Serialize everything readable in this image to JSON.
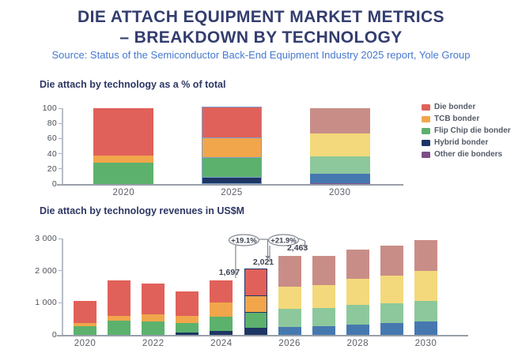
{
  "header": {
    "title_line1": "DIE ATTACH EQUIPMENT MARKET METRICS",
    "title_line2": "– BREAKDOWN BY TECHNOLOGY",
    "source": "Source: Status of the Semiconductor Back-End Equipment Industry 2025 report, Yole Group"
  },
  "colors": {
    "title_text": "#333d6e",
    "source_text": "#4679cf",
    "die_bonder": "#e0615a",
    "tcb_bonder": "#f1a64b",
    "flip_chip_die_bonder": "#5cb16d",
    "hybrid_bonder": "#1d3664",
    "other_die_bonders": "#7d4e87",
    "forecast_die_bonder": "#c98d88",
    "forecast_tcb_bonder": "#f3d97b",
    "forecast_flip_chip": "#8cc89b",
    "forecast_hybrid": "#4678b0",
    "annotation_gray": "#82878f"
  },
  "legend": {
    "items": [
      {
        "label": "Die bonder",
        "color": "#e0615a"
      },
      {
        "label": "TCB bonder",
        "color": "#f1a64b"
      },
      {
        "label": "Flip Chip die bonder",
        "color": "#5cb16d"
      },
      {
        "label": "Hybrid bonder",
        "color": "#1d3664"
      },
      {
        "label": "Other die bonders",
        "color": "#7d4e87"
      }
    ]
  },
  "chart_data": [
    {
      "type": "bar",
      "stacked": true,
      "title": "Die attach by technology as a % of total",
      "categories": [
        "2020",
        "2025",
        "2030"
      ],
      "ylim": [
        0,
        100
      ],
      "yticks": [
        0,
        20,
        40,
        60,
        80,
        100
      ],
      "ytick_labels": [
        "0",
        "20",
        "40",
        "60",
        "80",
        "100"
      ],
      "grid": false,
      "legend_position": "right",
      "faded_from_index": 2,
      "highlight_index": 1,
      "highlight_outline": "#7d9dcb",
      "series": [
        {
          "name": "Other die bonders",
          "color": "#7d4e87",
          "faded_color": "#7d4e87",
          "values": [
            0,
            0,
            1
          ]
        },
        {
          "name": "Hybrid bonder",
          "color": "#1d3664",
          "faded_color": "#4678b0",
          "values": [
            0,
            8,
            13
          ]
        },
        {
          "name": "Flip Chip die bonder",
          "color": "#5cb16d",
          "faded_color": "#8cc89b",
          "values": [
            28,
            26,
            22
          ]
        },
        {
          "name": "TCB bonder",
          "color": "#f1a64b",
          "faded_color": "#f3d97b",
          "values": [
            10,
            26,
            31
          ]
        },
        {
          "name": "Die bonder",
          "color": "#e0615a",
          "faded_color": "#c98d88",
          "values": [
            62,
            40,
            33
          ]
        }
      ]
    },
    {
      "type": "bar",
      "stacked": true,
      "title": "Die attach by technology revenues in US$M",
      "categories": [
        "2020",
        "2021",
        "2022",
        "2023",
        "2024",
        "2025",
        "2026",
        "2027",
        "2028",
        "2029",
        "2030"
      ],
      "xticklabels": [
        "2020",
        "",
        "2022",
        "",
        "2024",
        "",
        "2026",
        "",
        "2028",
        "",
        "2030"
      ],
      "ylim": [
        0,
        3000
      ],
      "yticks": [
        0,
        1000,
        2000,
        3000
      ],
      "ytick_labels": [
        "0",
        "1 000",
        "2 000",
        "3 000"
      ],
      "grid": false,
      "faded_from_index": 6,
      "highlight_index": 5,
      "highlight_outline": "#1d3664",
      "series": [
        {
          "name": "Other die bonders",
          "color": "#7d4e87",
          "faded_color": "#7d4e87",
          "values": [
            0,
            0,
            0,
            0,
            0,
            0,
            0,
            0,
            0,
            0,
            0
          ]
        },
        {
          "name": "Hybrid bonder",
          "color": "#1d3664",
          "faded_color": "#4678b0",
          "values": [
            0,
            0,
            0,
            70,
            120,
            190,
            240,
            260,
            320,
            370,
            430
          ]
        },
        {
          "name": "Flip Chip die bonder",
          "color": "#5cb16d",
          "faded_color": "#8cc89b",
          "values": [
            280,
            450,
            420,
            310,
            440,
            490,
            580,
            570,
            610,
            620,
            620
          ]
        },
        {
          "name": "TCB bonder",
          "color": "#f1a64b",
          "faded_color": "#f3d97b",
          "values": [
            90,
            150,
            210,
            220,
            440,
            530,
            680,
            720,
            820,
            860,
            940
          ]
        },
        {
          "name": "Die bonder",
          "color": "#e0615a",
          "faded_color": "#c98d88",
          "values": [
            680,
            1100,
            970,
            750,
            697,
            811,
            963,
            920,
            900,
            940,
            970
          ]
        }
      ],
      "bar_labels": {
        "4": "1,697",
        "5": "2,021",
        "6": "2,463"
      },
      "annotations": [
        {
          "text": "+19.1%",
          "from_index": 4,
          "to_index": 5
        },
        {
          "text": "+21.9%",
          "from_index": 5,
          "to_index": 6
        }
      ]
    }
  ]
}
